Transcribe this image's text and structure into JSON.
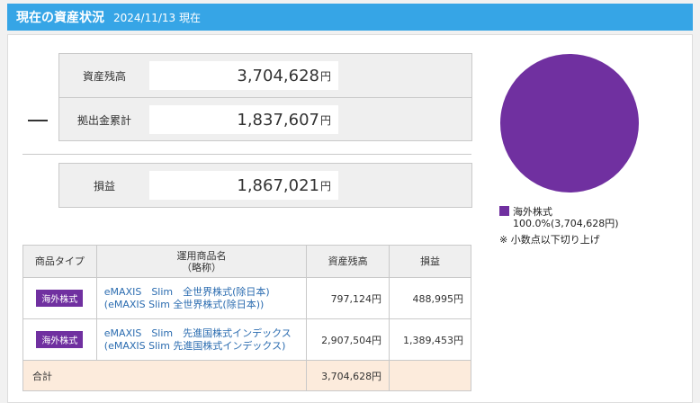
{
  "header": {
    "title": "現在の資産状況",
    "date": "2024/11/13 現在"
  },
  "summary": {
    "balance": {
      "label": "資産残高",
      "value": "3,704,628",
      "unit": "円"
    },
    "contribution": {
      "label": "拠出金累計",
      "value": "1,837,607",
      "unit": "円"
    },
    "profit": {
      "label": "損益",
      "value": "1,867,021",
      "unit": "円"
    },
    "operator": "−"
  },
  "chart_data": {
    "type": "pie",
    "categories": [
      "海外株式"
    ],
    "values": [
      100.0
    ],
    "colors": [
      "#7030a0"
    ],
    "legend": [
      {
        "name": "海外株式",
        "detail": "100.0%(3,704,628円)"
      }
    ],
    "note": "※ 小数点以下切り上げ"
  },
  "table": {
    "headers": {
      "type": "商品タイプ",
      "name_line1": "運用商品名",
      "name_line2": "（略称）",
      "balance": "資産残高",
      "profit": "損益"
    },
    "rows": [
      {
        "type": "海外株式",
        "name": "eMAXIS　Slim　全世界株式(除日本)",
        "short": "(eMAXIS Slim 全世界株式(除日本))",
        "balance": "797,124円",
        "profit": "488,995円"
      },
      {
        "type": "海外株式",
        "name": "eMAXIS　Slim　先進国株式インデックス",
        "short": "(eMAXIS Slim 先進国株式インデックス)",
        "balance": "2,907,504円",
        "profit": "1,389,453円"
      }
    ],
    "total": {
      "label": "合計",
      "balance": "3,704,628円",
      "profit": ""
    }
  }
}
